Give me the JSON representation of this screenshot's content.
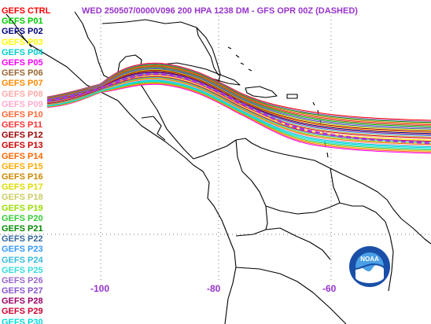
{
  "title": "WED 250507/0000V096  200 HPA 1238 DM - GFS OPR 00Z (DASHED)",
  "members": [
    {
      "label": "GEFS CTRL",
      "color": "#ff0000"
    },
    {
      "label": "GEFS P01",
      "color": "#00cc00"
    },
    {
      "label": "GEFS P02",
      "color": "#000080"
    },
    {
      "label": "GEFS P03",
      "color": "#ffff00"
    },
    {
      "label": "GEFS P04",
      "color": "#00cccc"
    },
    {
      "label": "GEFS P05",
      "color": "#ff00ff"
    },
    {
      "label": "GEFS P06",
      "color": "#996633"
    },
    {
      "label": "GEFS P07",
      "color": "#ff8800"
    },
    {
      "label": "GEFS P08",
      "color": "#ffaaaa"
    },
    {
      "label": "GEFS P09",
      "color": "#ffaacc"
    },
    {
      "label": "GEFS P10",
      "color": "#ff6633"
    },
    {
      "label": "GEFS P11",
      "color": "#ff3333"
    },
    {
      "label": "GEFS P12",
      "color": "#990000"
    },
    {
      "label": "GEFS P13",
      "color": "#cc0000"
    },
    {
      "label": "GEFS P14",
      "color": "#ff6600"
    },
    {
      "label": "GEFS P15",
      "color": "#ffaa00"
    },
    {
      "label": "GEFS P16",
      "color": "#cc8800"
    },
    {
      "label": "GEFS P17",
      "color": "#dddd00"
    },
    {
      "label": "GEFS P18",
      "color": "#cccc66"
    },
    {
      "label": "GEFS P19",
      "color": "#99dd00"
    },
    {
      "label": "GEFS P20",
      "color": "#33cc33"
    },
    {
      "label": "GEFS P21",
      "color": "#008800"
    },
    {
      "label": "GEFS P22",
      "color": "#336699"
    },
    {
      "label": "GEFS P23",
      "color": "#3399ff"
    },
    {
      "label": "GEFS P24",
      "color": "#33bbdd"
    },
    {
      "label": "GEFS P25",
      "color": "#33dddd"
    },
    {
      "label": "GEFS P26",
      "color": "#9966cc"
    },
    {
      "label": "GEFS P27",
      "color": "#8855cc"
    },
    {
      "label": "GEFS P28",
      "color": "#990066"
    },
    {
      "label": "GEFS P29",
      "color": "#cc0033"
    },
    {
      "label": "GEFS P30",
      "color": "#00dddd"
    }
  ],
  "operational": {
    "color": "#aa33dd"
  },
  "longitudes": [
    "-100",
    "-80",
    "-60"
  ],
  "logo_text": "NOAA"
}
